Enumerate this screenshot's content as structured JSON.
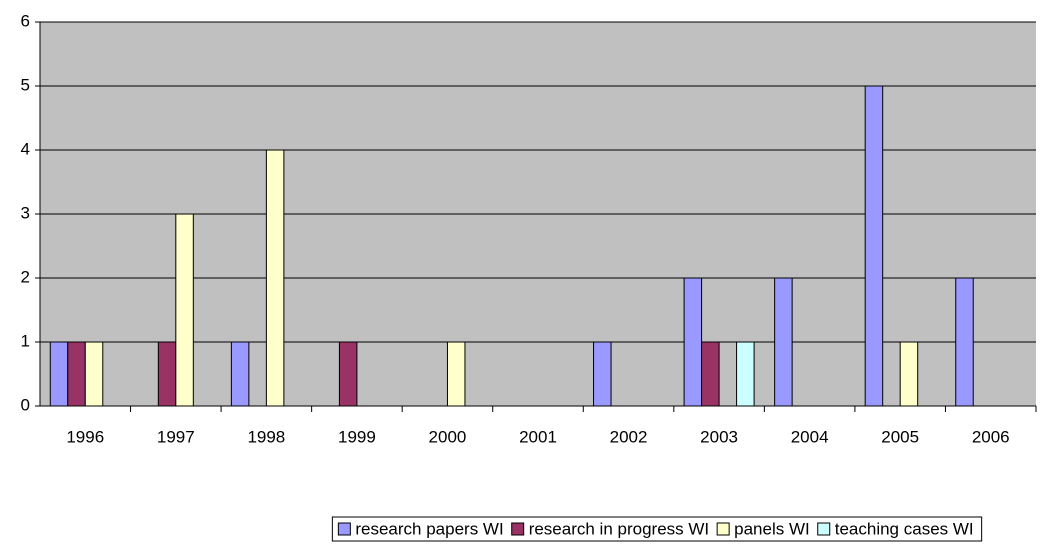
{
  "chart_data": {
    "type": "bar",
    "categories": [
      "1996",
      "1997",
      "1998",
      "1999",
      "2000",
      "2001",
      "2002",
      "2003",
      "2004",
      "2005",
      "2006"
    ],
    "series": [
      {
        "name": "research papers WI",
        "color": "#9999ff",
        "values": [
          1,
          0,
          1,
          0,
          0,
          0,
          1,
          2,
          2,
          5,
          2
        ]
      },
      {
        "name": "research in progress WI",
        "color": "#993366",
        "values": [
          1,
          1,
          0,
          1,
          0,
          0,
          0,
          1,
          0,
          0,
          0
        ]
      },
      {
        "name": "panels WI",
        "color": "#ffffcc",
        "values": [
          1,
          3,
          4,
          0,
          1,
          0,
          0,
          0,
          0,
          1,
          0
        ]
      },
      {
        "name": "teaching cases WI",
        "color": "#ccffff",
        "values": [
          0,
          0,
          0,
          0,
          0,
          0,
          0,
          1,
          0,
          0,
          0
        ]
      }
    ],
    "ylim": [
      0,
      6
    ],
    "yticks": [
      0,
      1,
      2,
      3,
      4,
      5,
      6
    ],
    "grid": true,
    "legend": "bottom"
  }
}
